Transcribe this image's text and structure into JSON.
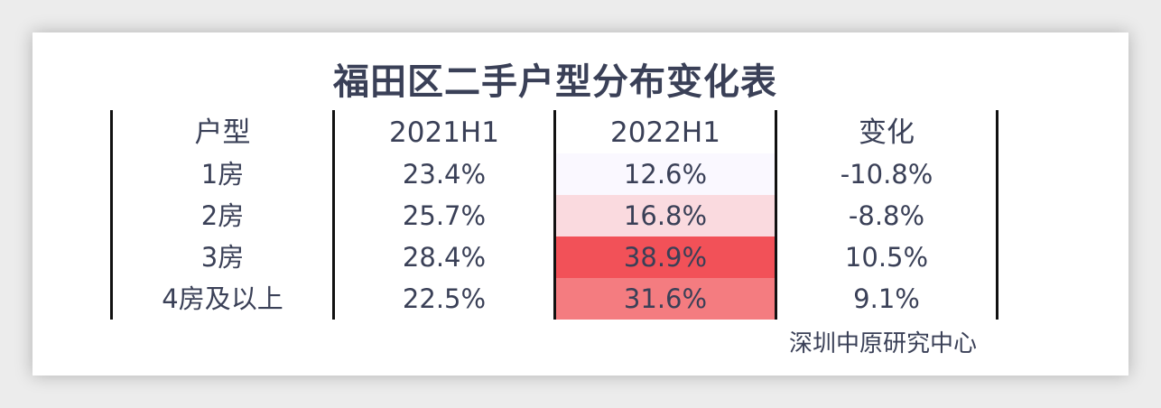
{
  "title": "福田区二手户型分布变化表",
  "source": "深圳中原研究中心",
  "colors": {
    "text": "#3a4057",
    "heat_low": "#faf8ff",
    "heat_mid": "#fadadf",
    "heat_high": "#f25158",
    "heat_upper": "#f47c80"
  },
  "chart_data": {
    "type": "table",
    "title": "福田区二手户型分布变化表",
    "columns": [
      "户型",
      "2021H1",
      "2022H1",
      "变化"
    ],
    "rows": [
      {
        "type": "1房",
        "h2021": "23.4%",
        "h2022": "12.6%",
        "change": "-10.8%"
      },
      {
        "type": "2房",
        "h2021": "25.7%",
        "h2022": "16.8%",
        "change": "-8.8%"
      },
      {
        "type": "3房",
        "h2021": "28.4%",
        "h2022": "38.9%",
        "change": "10.5%"
      },
      {
        "type": "4房及以上",
        "h2021": "22.5%",
        "h2022": "31.6%",
        "change": "9.1%"
      }
    ],
    "heatmap_column": "2022H1",
    "heatmap_values": [
      12.6,
      16.8,
      38.9,
      31.6
    ]
  }
}
